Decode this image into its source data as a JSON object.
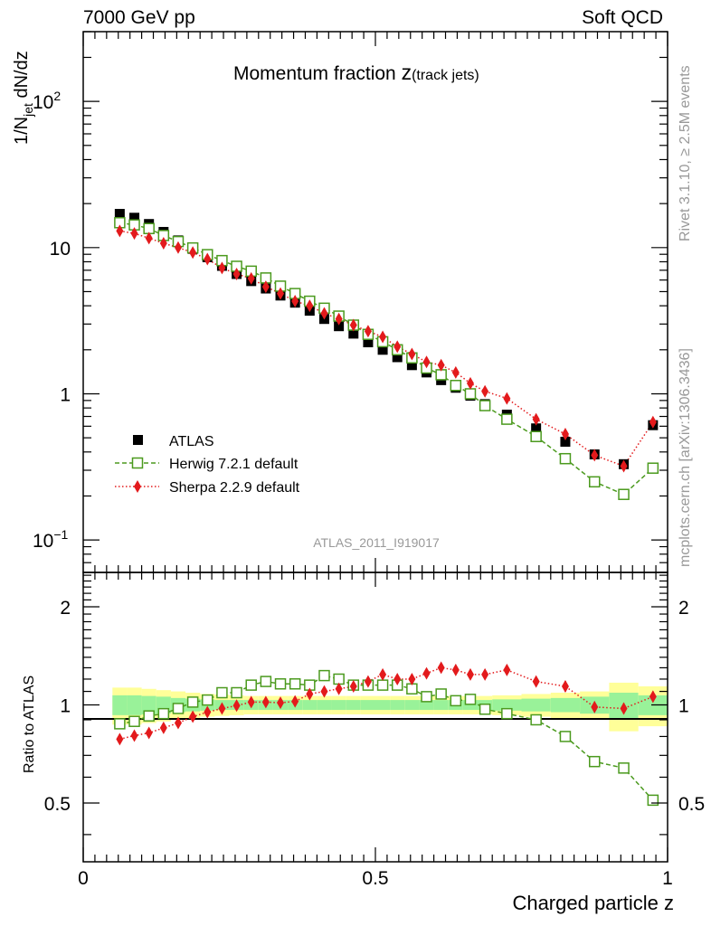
{
  "header": {
    "left": "7000 GeV pp",
    "right": "Soft QCD"
  },
  "side": {
    "rivet": "Rivet 3.1.10, ≥ 2.5M events",
    "mcplots": "mcplots.cern.ch [arXiv:1306.3436]"
  },
  "chart_data": [
    {
      "type": "scatter",
      "title_main": "Momentum fraction ",
      "title_z": "z",
      "title_sub": "(track jets)",
      "ylabel_a": "1/N",
      "ylabel_sub": "jet",
      "ylabel_b": " dN/dz",
      "xlim": [
        0,
        1
      ],
      "ylim": [
        0.06,
        300
      ],
      "yscale": "log",
      "y_ticks": [
        {
          "value": 0.1,
          "base": "10",
          "exp": "−1"
        },
        {
          "value": 1,
          "base": "1",
          "exp": ""
        },
        {
          "value": 10,
          "base": "10",
          "exp": ""
        },
        {
          "value": 100,
          "base": "10",
          "exp": "2"
        }
      ],
      "legend_position": "lower-left",
      "analysis_label": "ATLAS_2011_I919017",
      "x": [
        0.0625,
        0.0875,
        0.1125,
        0.1375,
        0.1625,
        0.1875,
        0.2125,
        0.2375,
        0.2625,
        0.2875,
        0.3125,
        0.3375,
        0.3625,
        0.3875,
        0.4125,
        0.4375,
        0.4625,
        0.4875,
        0.5125,
        0.5375,
        0.5625,
        0.5875,
        0.6125,
        0.6375,
        0.6625,
        0.6875,
        0.725,
        0.775,
        0.825,
        0.875,
        0.925,
        0.975
      ],
      "series": [
        {
          "name": "ATLAS",
          "values": [
            17.0,
            16.0,
            14.5,
            12.8,
            11.2,
            9.8,
            8.6,
            7.5,
            6.6,
            5.9,
            5.25,
            4.7,
            4.2,
            3.7,
            3.25,
            2.9,
            2.58,
            2.25,
            2.0,
            1.78,
            1.57,
            1.4,
            1.24,
            1.1,
            0.97,
            0.85,
            0.72,
            0.58,
            0.47,
            0.385,
            0.33,
            0.61
          ]
        },
        {
          "name": "Herwig 7.2.1 default",
          "values": [
            14.8,
            14.3,
            13.5,
            12.1,
            11.0,
            9.95,
            8.95,
            8.15,
            7.45,
            6.9,
            6.2,
            5.45,
            4.85,
            4.3,
            3.85,
            3.4,
            2.95,
            2.55,
            2.27,
            2.0,
            1.76,
            1.5,
            1.35,
            1.14,
            1.0,
            0.83,
            0.67,
            0.51,
            0.36,
            0.25,
            0.205,
            0.31
          ]
        },
        {
          "name": "Sherpa 2.2.9 default",
          "values": [
            13.0,
            12.5,
            11.6,
            10.7,
            10.0,
            9.25,
            8.35,
            7.25,
            6.6,
            6.15,
            5.4,
            4.85,
            4.3,
            4.0,
            3.55,
            3.25,
            2.95,
            2.68,
            2.45,
            2.1,
            1.87,
            1.65,
            1.57,
            1.4,
            1.18,
            1.04,
            0.93,
            0.67,
            0.53,
            0.38,
            0.32,
            0.64
          ]
        }
      ]
    },
    {
      "type": "scatter",
      "ylabel": "Ratio to ATLAS",
      "xlabel": "Charged particle z",
      "xlim": [
        0,
        1
      ],
      "ylim": [
        0.33,
        2.55
      ],
      "yscale": "log",
      "x_ticks": [
        {
          "value": 0,
          "label": "0"
        },
        {
          "value": 0.5,
          "label": "0.5"
        },
        {
          "value": 1,
          "label": "1"
        }
      ],
      "y_ticks": [
        {
          "value": 0.5,
          "label": "0.5"
        },
        {
          "value": 1,
          "label": "1"
        },
        {
          "value": 2,
          "label": "2"
        }
      ],
      "x": [
        0.0625,
        0.0875,
        0.1125,
        0.1375,
        0.1625,
        0.1875,
        0.2125,
        0.2375,
        0.2625,
        0.2875,
        0.3125,
        0.3375,
        0.3625,
        0.3875,
        0.4125,
        0.4375,
        0.4625,
        0.4875,
        0.5125,
        0.5375,
        0.5625,
        0.5875,
        0.6125,
        0.6375,
        0.6625,
        0.6875,
        0.725,
        0.775,
        0.825,
        0.875,
        0.925,
        0.975
      ],
      "bin_edges": [
        0.05,
        0.075,
        0.1,
        0.125,
        0.15,
        0.175,
        0.2,
        0.225,
        0.25,
        0.275,
        0.3,
        0.325,
        0.35,
        0.375,
        0.4,
        0.425,
        0.45,
        0.475,
        0.5,
        0.525,
        0.55,
        0.575,
        0.6,
        0.625,
        0.65,
        0.675,
        0.7,
        0.75,
        0.8,
        0.85,
        0.9,
        0.95,
        1.0
      ],
      "band_stat": [
        0.07,
        0.07,
        0.065,
        0.06,
        0.05,
        0.045,
        0.04,
        0.035,
        0.035,
        0.035,
        0.035,
        0.035,
        0.035,
        0.035,
        0.035,
        0.035,
        0.035,
        0.035,
        0.035,
        0.035,
        0.035,
        0.035,
        0.035,
        0.035,
        0.035,
        0.035,
        0.04,
        0.045,
        0.05,
        0.06,
        0.09,
        0.07
      ],
      "band_total": [
        0.13,
        0.13,
        0.12,
        0.11,
        0.1,
        0.09,
        0.08,
        0.075,
        0.07,
        0.065,
        0.065,
        0.065,
        0.065,
        0.065,
        0.065,
        0.065,
        0.065,
        0.065,
        0.065,
        0.065,
        0.065,
        0.065,
        0.065,
        0.065,
        0.065,
        0.065,
        0.07,
        0.08,
        0.09,
        0.1,
        0.17,
        0.14
      ],
      "series": [
        {
          "name": "Herwig 7.2.1 default",
          "values": [
            0.875,
            0.89,
            0.925,
            0.94,
            0.975,
            1.02,
            1.035,
            1.09,
            1.09,
            1.15,
            1.18,
            1.16,
            1.16,
            1.15,
            1.23,
            1.2,
            1.15,
            1.15,
            1.15,
            1.15,
            1.12,
            1.06,
            1.08,
            1.03,
            1.04,
            0.97,
            0.94,
            0.9,
            0.8,
            0.67,
            0.64,
            0.51
          ]
        },
        {
          "name": "Sherpa 2.2.9 default",
          "values": [
            0.785,
            0.805,
            0.82,
            0.85,
            0.88,
            0.92,
            0.95,
            0.975,
            0.995,
            1.02,
            1.02,
            1.015,
            1.025,
            1.08,
            1.1,
            1.12,
            1.14,
            1.18,
            1.24,
            1.2,
            1.2,
            1.25,
            1.3,
            1.28,
            1.24,
            1.24,
            1.28,
            1.18,
            1.14,
            0.985,
            0.975,
            1.06
          ]
        }
      ]
    }
  ]
}
